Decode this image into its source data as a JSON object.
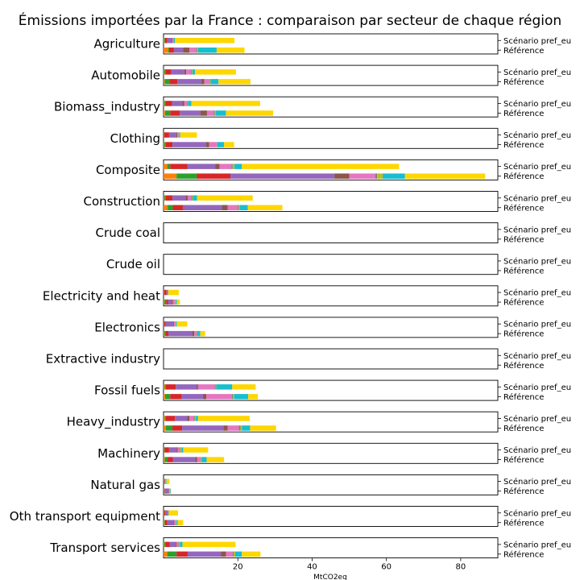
{
  "chart_data": {
    "type": "bar",
    "orientation": "horizontal-stacked",
    "title": "Émissions importées par la France : comparaison par secteur de chaque région",
    "xlabel": "MtCO2eq",
    "xlim": [
      0,
      90
    ],
    "xticks": [
      20,
      40,
      60,
      80
    ],
    "scenarios": [
      "Scénario pref_eu",
      "Référence"
    ],
    "segment_colors": [
      "#ff7f0e",
      "#2ca02c",
      "#d62728",
      "#9467bd",
      "#8c564b",
      "#e377c2",
      "#7f7f7f",
      "#bcbd22",
      "#17becf",
      "#ffd700"
    ],
    "categories": [
      {
        "name": "Agriculture",
        "scenario": [
          0.2,
          0.2,
          0.6,
          1.2,
          0.2,
          0.2,
          0.1,
          0.1,
          0.3,
          16.0
        ],
        "reference": [
          1.3,
          0.2,
          1.3,
          2.5,
          1.7,
          1.8,
          0.2,
          0.3,
          5.0,
          7.5
        ]
      },
      {
        "name": "Automobile",
        "scenario": [
          0.2,
          0.3,
          1.6,
          3.5,
          0.5,
          1.3,
          0.2,
          0.2,
          0.7,
          11.0
        ],
        "reference": [
          0.3,
          1.3,
          2.1,
          6.5,
          0.8,
          1.3,
          0.2,
          0.2,
          2.1,
          8.6
        ]
      },
      {
        "name": "Biomass_industry",
        "scenario": [
          0.2,
          0.3,
          1.8,
          2.8,
          0.5,
          0.8,
          0.1,
          0.1,
          0.9,
          18.5
        ],
        "reference": [
          0.4,
          1.4,
          2.6,
          5.5,
          1.8,
          1.8,
          0.3,
          0.3,
          2.7,
          12.7
        ]
      },
      {
        "name": "Clothing",
        "scenario": [
          0.1,
          0.1,
          1.3,
          1.9,
          0.3,
          0.3,
          0.1,
          0.1,
          0.3,
          4.5
        ],
        "reference": [
          0.2,
          0.4,
          1.8,
          9.1,
          0.8,
          2.0,
          0.1,
          0.1,
          1.8,
          2.7
        ]
      },
      {
        "name": "Composite",
        "scenario": [
          1.0,
          0.8,
          4.6,
          7.5,
          1.2,
          3.2,
          0.3,
          0.5,
          2.0,
          42.3
        ],
        "reference": [
          3.5,
          5.5,
          9.0,
          28.0,
          4.0,
          7.0,
          0.5,
          1.5,
          6.0,
          21.6
        ]
      },
      {
        "name": "Construction",
        "scenario": [
          0.2,
          0.4,
          1.8,
          3.5,
          0.6,
          1.0,
          0.2,
          0.2,
          1.1,
          15.0
        ],
        "reference": [
          1.1,
          1.4,
          2.7,
          10.5,
          1.6,
          2.7,
          0.3,
          0.3,
          2.1,
          9.3
        ]
      },
      {
        "name": "Crude coal",
        "scenario": [
          0,
          0,
          0,
          0,
          0,
          0,
          0,
          0,
          0,
          0
        ],
        "reference": [
          0,
          0,
          0,
          0,
          0,
          0,
          0,
          0,
          0,
          0
        ]
      },
      {
        "name": "Crude oil",
        "scenario": [
          0,
          0,
          0,
          0,
          0,
          0,
          0,
          0,
          0,
          0
        ],
        "reference": [
          0,
          0,
          0,
          0,
          0,
          0,
          0,
          0,
          0,
          0
        ]
      },
      {
        "name": "Electricity and heat",
        "scenario": [
          0.1,
          0.1,
          0.6,
          0.2,
          0.1,
          0.1,
          0,
          0,
          0.1,
          2.8
        ],
        "reference": [
          0.2,
          0.5,
          0.5,
          1.0,
          0.3,
          0.6,
          0.1,
          0.1,
          0.3,
          0.8
        ]
      },
      {
        "name": "Electronics",
        "scenario": [
          0.1,
          0.1,
          0.4,
          2.0,
          0.2,
          0.3,
          0.1,
          0.1,
          0.3,
          2.8
        ],
        "reference": [
          0.2,
          0.3,
          0.8,
          6.5,
          0.5,
          0.6,
          0.1,
          0.1,
          0.8,
          1.3
        ]
      },
      {
        "name": "Extractive industry",
        "scenario": [
          0,
          0,
          0,
          0,
          0,
          0,
          0,
          0,
          0,
          0
        ],
        "reference": [
          0,
          0,
          0,
          0,
          0,
          0,
          0,
          0,
          0,
          0
        ]
      },
      {
        "name": "Fossil fuels",
        "scenario": [
          0.3,
          0.3,
          2.7,
          5.6,
          0.4,
          4.5,
          0.2,
          0.2,
          4.3,
          6.3
        ],
        "reference": [
          0.4,
          1.4,
          3.1,
          5.7,
          0.9,
          6.9,
          0.3,
          0.3,
          3.8,
          2.6
        ]
      },
      {
        "name": "Heavy_industry",
        "scenario": [
          0.3,
          0.3,
          2.5,
          3.3,
          0.6,
          1.1,
          0.3,
          0.3,
          0.6,
          13.9
        ],
        "reference": [
          0.6,
          1.8,
          2.6,
          11.1,
          1.2,
          3.0,
          0.4,
          0.4,
          2.2,
          7.0
        ]
      },
      {
        "name": "Machinery",
        "scenario": [
          0.1,
          0.2,
          1.2,
          2.0,
          0.3,
          0.6,
          0.2,
          0.2,
          0.5,
          6.7
        ],
        "reference": [
          0.3,
          0.8,
          1.4,
          6.0,
          0.5,
          1.0,
          0.1,
          0.2,
          1.3,
          4.7
        ]
      },
      {
        "name": "Natural gas",
        "scenario": [
          0.1,
          0.1,
          0.1,
          0.2,
          0,
          0.1,
          0,
          0,
          0.2,
          0.8
        ],
        "reference": [
          0.1,
          0.1,
          0.1,
          1.0,
          0.1,
          0.2,
          0,
          0.1,
          0.2,
          0.1
        ]
      },
      {
        "name": "Oth transport equipment",
        "scenario": [
          0.1,
          0.1,
          0.3,
          0.6,
          0.1,
          0.1,
          0,
          0,
          0.1,
          2.5
        ],
        "reference": [
          0.2,
          0.2,
          0.6,
          1.7,
          0.2,
          0.4,
          0.1,
          0.1,
          0.3,
          1.5
        ]
      },
      {
        "name": "Transport services",
        "scenario": [
          0.2,
          0.3,
          1.2,
          1.5,
          0.3,
          0.5,
          0.2,
          0.2,
          0.7,
          14.3
        ],
        "reference": [
          1.0,
          2.5,
          3.0,
          9.0,
          1.3,
          1.8,
          0.3,
          0.4,
          1.8,
          5.0
        ]
      }
    ]
  }
}
